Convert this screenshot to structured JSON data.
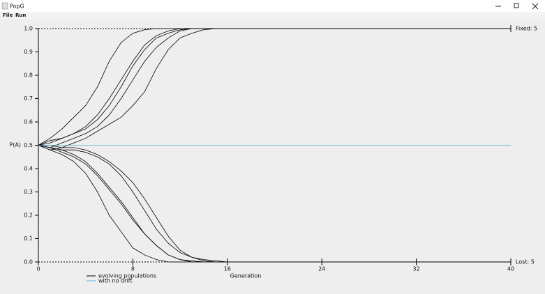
{
  "window": {
    "title": "PopG",
    "menu": [
      "File",
      "Run"
    ]
  },
  "chart_data": {
    "type": "line",
    "y_label": "P(A)",
    "x_label": "Generation",
    "annotations": {
      "fixed": "Fixed: 5",
      "lost": "Lost: 5"
    },
    "x": [
      0,
      1,
      2,
      3,
      4,
      5,
      6,
      7,
      8,
      9,
      10,
      11,
      12,
      13,
      14,
      15,
      16,
      17,
      18,
      19,
      20,
      21,
      22,
      23,
      24,
      25,
      26,
      27,
      28,
      29,
      30,
      31,
      32,
      33,
      34,
      35,
      36,
      37,
      38,
      39,
      40
    ],
    "series": [
      {
        "color": "#000000",
        "values": [
          0.5,
          0.53,
          0.57,
          0.62,
          0.67,
          0.75,
          0.86,
          0.94,
          0.98,
          0.995,
          1,
          1,
          1,
          1,
          1,
          1,
          1,
          1,
          1,
          1,
          1,
          1,
          1,
          1,
          1,
          1,
          1,
          1,
          1,
          1,
          1,
          1,
          1,
          1,
          1,
          1,
          1,
          1,
          1,
          1,
          1
        ]
      },
      {
        "color": "#000000",
        "values": [
          0.5,
          0.51,
          0.53,
          0.55,
          0.58,
          0.63,
          0.7,
          0.78,
          0.86,
          0.93,
          0.97,
          0.99,
          1,
          1,
          1,
          1,
          1,
          1,
          1,
          1,
          1,
          1,
          1,
          1,
          1,
          1,
          1,
          1,
          1,
          1,
          1,
          1,
          1,
          1,
          1,
          1,
          1,
          1,
          1,
          1,
          1
        ]
      },
      {
        "color": "#000000",
        "values": [
          0.5,
          0.52,
          0.53,
          0.55,
          0.57,
          0.61,
          0.67,
          0.75,
          0.84,
          0.91,
          0.96,
          0.98,
          0.995,
          1,
          1,
          1,
          1,
          1,
          1,
          1,
          1,
          1,
          1,
          1,
          1,
          1,
          1,
          1,
          1,
          1,
          1,
          1,
          1,
          1,
          1,
          1,
          1,
          1,
          1,
          1,
          1
        ]
      },
      {
        "color": "#000000",
        "values": [
          0.5,
          0.49,
          0.51,
          0.53,
          0.55,
          0.58,
          0.63,
          0.7,
          0.78,
          0.86,
          0.92,
          0.96,
          0.99,
          1,
          1,
          1,
          1,
          1,
          1,
          1,
          1,
          1,
          1,
          1,
          1,
          1,
          1,
          1,
          1,
          1,
          1,
          1,
          1,
          1,
          1,
          1,
          1,
          1,
          1,
          1,
          1
        ]
      },
      {
        "color": "#000000",
        "values": [
          0.5,
          0.48,
          0.49,
          0.51,
          0.53,
          0.56,
          0.59,
          0.62,
          0.67,
          0.73,
          0.83,
          0.91,
          0.96,
          0.98,
          0.995,
          1,
          1,
          1,
          1,
          1,
          1,
          1,
          1,
          1,
          1,
          1,
          1,
          1,
          1,
          1,
          1,
          1,
          1,
          1,
          1,
          1,
          1,
          1,
          1,
          1,
          1
        ]
      },
      {
        "color": "#000000",
        "values": [
          0.5,
          0.48,
          0.46,
          0.43,
          0.38,
          0.3,
          0.2,
          0.13,
          0.06,
          0.03,
          0.01,
          0,
          0,
          0,
          0,
          0,
          0,
          0,
          0,
          0,
          0,
          0,
          0,
          0,
          0,
          0,
          0,
          0,
          0,
          0,
          0,
          0,
          0,
          0,
          0,
          0,
          0,
          0,
          0,
          0,
          0
        ]
      },
      {
        "color": "#000000",
        "values": [
          0.5,
          0.49,
          0.47,
          0.45,
          0.42,
          0.37,
          0.31,
          0.25,
          0.18,
          0.12,
          0.07,
          0.03,
          0.01,
          0.005,
          0,
          0,
          0,
          0,
          0,
          0,
          0,
          0,
          0,
          0,
          0,
          0,
          0,
          0,
          0,
          0,
          0,
          0,
          0,
          0,
          0,
          0,
          0,
          0,
          0,
          0,
          0
        ]
      },
      {
        "color": "#000000",
        "values": [
          0.5,
          0.49,
          0.48,
          0.46,
          0.43,
          0.38,
          0.32,
          0.26,
          0.19,
          0.12,
          0.07,
          0.03,
          0.01,
          0,
          0,
          0,
          0,
          0,
          0,
          0,
          0,
          0,
          0,
          0,
          0,
          0,
          0,
          0,
          0,
          0,
          0,
          0,
          0,
          0,
          0,
          0,
          0,
          0,
          0,
          0,
          0
        ]
      },
      {
        "color": "#000000",
        "values": [
          0.5,
          0.49,
          0.48,
          0.48,
          0.47,
          0.45,
          0.42,
          0.37,
          0.3,
          0.22,
          0.14,
          0.08,
          0.04,
          0.02,
          0.005,
          0,
          0,
          0,
          0,
          0,
          0,
          0,
          0,
          0,
          0,
          0,
          0,
          0,
          0,
          0,
          0,
          0,
          0,
          0,
          0,
          0,
          0,
          0,
          0,
          0,
          0
        ]
      },
      {
        "color": "#000000",
        "values": [
          0.5,
          0.5,
          0.49,
          0.49,
          0.48,
          0.46,
          0.43,
          0.39,
          0.34,
          0.27,
          0.19,
          0.11,
          0.05,
          0.02,
          0.01,
          0.005,
          0,
          0,
          0,
          0,
          0,
          0,
          0,
          0,
          0,
          0,
          0,
          0,
          0,
          0,
          0,
          0,
          0,
          0,
          0,
          0,
          0,
          0,
          0,
          0,
          0
        ]
      },
      {
        "color": "#5aaee0",
        "values": [
          0.5,
          0.5,
          0.5,
          0.5,
          0.5,
          0.5,
          0.5,
          0.5,
          0.5,
          0.5,
          0.5,
          0.5,
          0.5,
          0.5,
          0.5,
          0.5,
          0.5,
          0.5,
          0.5,
          0.5,
          0.5,
          0.5,
          0.5,
          0.5,
          0.5,
          0.5,
          0.5,
          0.5,
          0.5,
          0.5,
          0.5,
          0.5,
          0.5,
          0.5,
          0.5,
          0.5,
          0.5,
          0.5,
          0.5,
          0.5,
          0.5
        ]
      }
    ],
    "legend": [
      {
        "label": "evolving populations",
        "color": "#000000"
      },
      {
        "label": "with no drift",
        "color": "#5aaee0"
      }
    ],
    "xlim": [
      0,
      40
    ],
    "xticks": [
      0,
      8,
      16,
      24,
      32,
      40
    ],
    "ylim": [
      0,
      1
    ],
    "yticks": [
      {
        "value": 0,
        "label": "0.0"
      },
      0.1,
      0.2,
      0.3,
      0.4,
      0.5,
      0.6,
      0.7,
      0.8,
      0.9,
      {
        "value": 1,
        "label": "1.0"
      }
    ]
  }
}
